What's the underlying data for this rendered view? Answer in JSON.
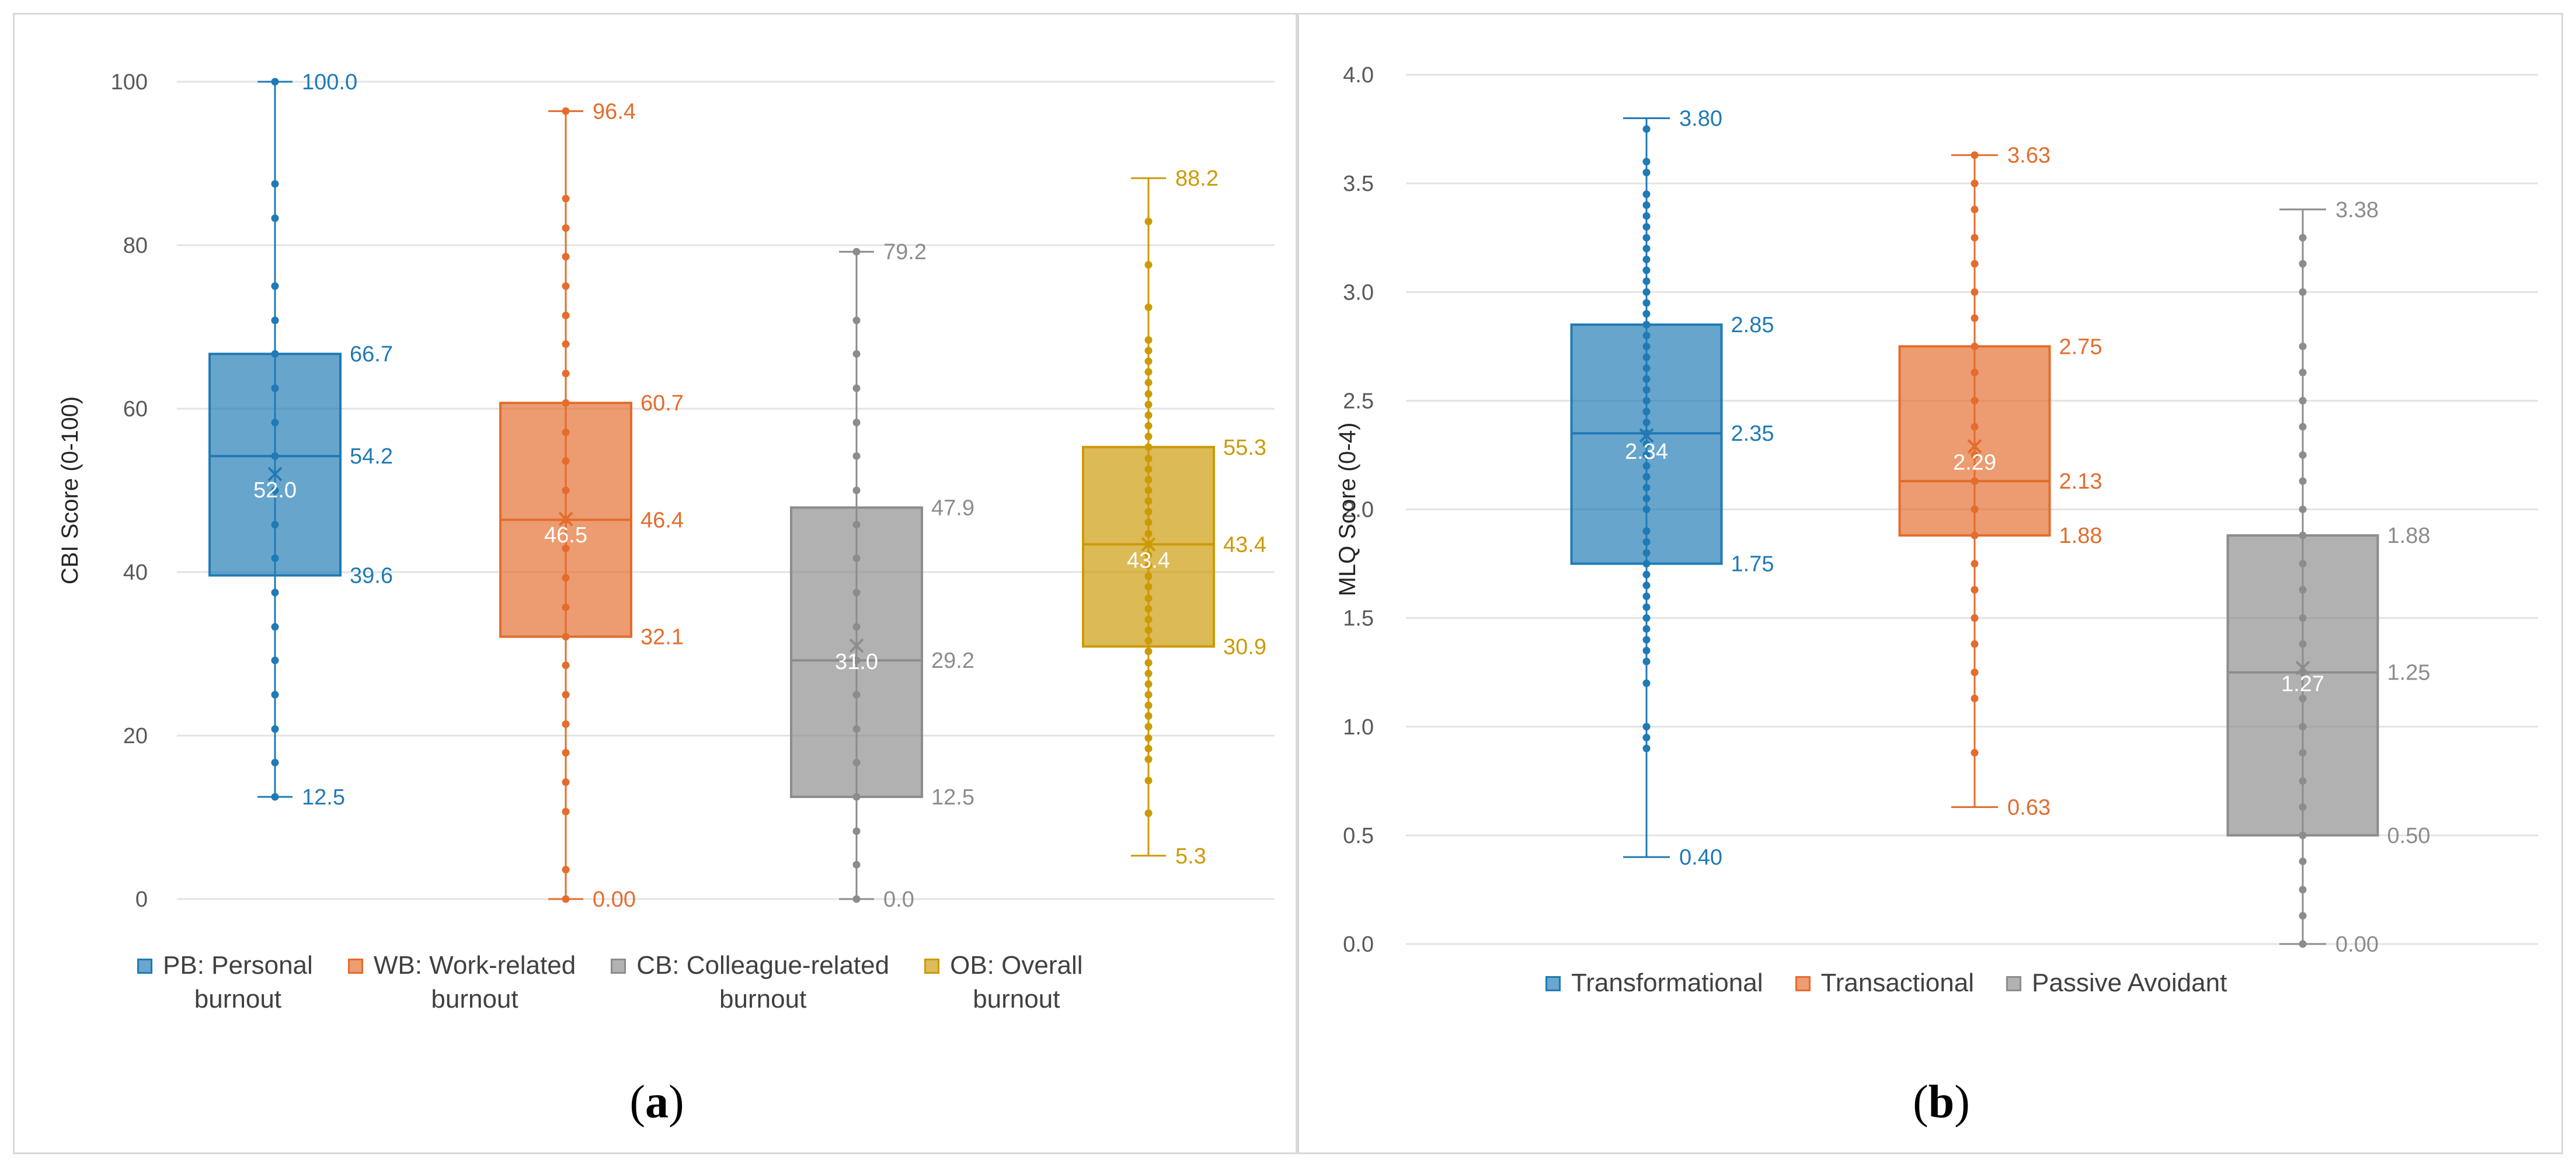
{
  "chart_data": [
    {
      "panel_label": "(a)",
      "type": "box",
      "ylabel": "CBI Score (0-100)",
      "ylim": [
        0,
        100
      ],
      "yticks": [
        "0",
        "20",
        "40",
        "60",
        "80",
        "100"
      ],
      "grid": true,
      "legend_position": "bottom",
      "series": [
        {
          "name": "PB: Personal burnout",
          "legend_lines": [
            "PB: Personal",
            "burnout"
          ],
          "color": "#1f7ab5",
          "min": 12.5,
          "q1": 39.6,
          "median": 54.2,
          "q3": 66.7,
          "max": 100.0,
          "mean": 52.0,
          "labels": {
            "min": "12.5",
            "q1": "39.6",
            "median": "54.2",
            "q3": "66.7",
            "max": "100.0",
            "mean": "52.0"
          },
          "points": [
            12.5,
            16.7,
            20.8,
            25.0,
            29.2,
            33.3,
            37.5,
            41.7,
            45.8,
            50.0,
            54.2,
            58.3,
            62.5,
            66.7,
            70.8,
            75.0,
            83.3,
            87.5,
            100.0
          ]
        },
        {
          "name": "WB: Work-related burnout",
          "legend_lines": [
            "WB: Work-related",
            "burnout"
          ],
          "color": "#e46c2c",
          "min": 0.0,
          "q1": 32.1,
          "median": 46.4,
          "q3": 60.7,
          "max": 96.4,
          "mean": 46.5,
          "labels": {
            "min": "0.00",
            "q1": "32.1",
            "median": "46.4",
            "q3": "60.7",
            "max": "96.4",
            "mean": "46.5"
          },
          "points": [
            0.0,
            3.6,
            10.7,
            14.3,
            17.9,
            21.4,
            25.0,
            28.6,
            32.1,
            35.7,
            39.3,
            42.9,
            46.4,
            50.0,
            53.6,
            57.1,
            60.7,
            64.3,
            67.9,
            71.4,
            75.0,
            78.6,
            82.1,
            85.7,
            96.4
          ]
        },
        {
          "name": "CB: Colleague-related burnout",
          "legend_lines": [
            "CB: Colleague-related",
            "burnout"
          ],
          "color": "#8c8c8c",
          "min": 0.0,
          "q1": 12.5,
          "median": 29.2,
          "q3": 47.9,
          "max": 79.2,
          "mean": 31.0,
          "labels": {
            "min": "0.0",
            "q1": "12.5",
            "median": "29.2",
            "q3": "47.9",
            "max": "79.2",
            "mean": "31.0"
          },
          "points": [
            0.0,
            4.2,
            8.3,
            12.5,
            16.7,
            20.8,
            25.0,
            29.2,
            33.3,
            37.5,
            41.7,
            45.8,
            50.0,
            54.2,
            58.3,
            62.5,
            66.7,
            70.8,
            79.2
          ]
        },
        {
          "name": "OB: Overall burnout",
          "legend_lines": [
            "OB: Overall",
            "burnout"
          ],
          "color": "#cc9a06",
          "min": 5.3,
          "q1": 30.9,
          "median": 43.4,
          "q3": 55.3,
          "max": 88.2,
          "mean": 43.4,
          "labels": {
            "min": "5.3",
            "q1": "30.9",
            "median": "43.4",
            "q3": "55.3",
            "max": "88.2",
            "mean": "43.4"
          },
          "points": [
            10.5,
            14.5,
            17.1,
            18.4,
            19.7,
            21.1,
            22.4,
            23.7,
            25.0,
            26.3,
            27.6,
            28.9,
            30.3,
            31.6,
            32.9,
            34.2,
            35.5,
            36.8,
            38.2,
            39.5,
            40.8,
            42.1,
            43.4,
            44.7,
            46.1,
            47.4,
            48.7,
            50.0,
            51.3,
            52.6,
            53.9,
            55.3,
            56.6,
            57.9,
            59.2,
            60.5,
            61.8,
            63.2,
            64.5,
            65.8,
            67.1,
            68.4,
            72.4,
            77.6,
            82.9
          ]
        }
      ]
    },
    {
      "panel_label": "(b)",
      "type": "box",
      "ylabel": "MLQ Score (0-4)",
      "ylim": [
        0,
        4
      ],
      "yticks": [
        "0.0",
        "0.5",
        "1.0",
        "1.5",
        "2.0",
        "2.5",
        "3.0",
        "3.5",
        "4.0"
      ],
      "grid": true,
      "legend_position": "bottom",
      "series": [
        {
          "name": "Transformational",
          "legend_lines": [
            "Transformational"
          ],
          "color": "#1f7ab5",
          "min": 0.4,
          "q1": 1.75,
          "median": 2.35,
          "q3": 2.85,
          "max": 3.8,
          "mean": 2.34,
          "labels": {
            "min": "0.40",
            "q1": "1.75",
            "median": "2.35",
            "q3": "2.85",
            "max": "3.80",
            "mean": "2.34"
          },
          "points": [
            0.9,
            0.95,
            1.0,
            1.2,
            1.3,
            1.35,
            1.4,
            1.45,
            1.5,
            1.55,
            1.6,
            1.65,
            1.7,
            1.75,
            1.8,
            1.85,
            1.9,
            2.0,
            2.05,
            2.1,
            2.15,
            2.2,
            2.25,
            2.3,
            2.35,
            2.4,
            2.45,
            2.5,
            2.55,
            2.6,
            2.65,
            2.7,
            2.75,
            2.8,
            2.85,
            2.9,
            2.95,
            3.0,
            3.05,
            3.1,
            3.15,
            3.2,
            3.25,
            3.3,
            3.35,
            3.4,
            3.45,
            3.55,
            3.6,
            3.75
          ]
        },
        {
          "name": "Transactional",
          "legend_lines": [
            "Transactional"
          ],
          "color": "#e46c2c",
          "min": 0.63,
          "q1": 1.88,
          "median": 2.13,
          "q3": 2.75,
          "max": 3.63,
          "mean": 2.29,
          "labels": {
            "min": "0.63",
            "q1": "1.88",
            "median": "2.13",
            "q3": "2.75",
            "max": "3.63",
            "mean": "2.29"
          },
          "points": [
            0.88,
            1.13,
            1.25,
            1.38,
            1.5,
            1.63,
            1.75,
            1.88,
            2.0,
            2.13,
            2.25,
            2.38,
            2.5,
            2.63,
            2.75,
            2.88,
            3.0,
            3.13,
            3.25,
            3.38,
            3.5,
            3.63
          ]
        },
        {
          "name": "Passive Avoidant",
          "legend_lines": [
            "Passive Avoidant"
          ],
          "color": "#8c8c8c",
          "min": 0.0,
          "q1": 0.5,
          "median": 1.25,
          "q3": 1.88,
          "max": 3.38,
          "mean": 1.27,
          "labels": {
            "min": "0.00",
            "q1": "0.50",
            "median": "1.25",
            "q3": "1.88",
            "max": "3.38",
            "mean": "1.27"
          },
          "points": [
            0.0,
            0.13,
            0.25,
            0.38,
            0.5,
            0.63,
            0.75,
            0.88,
            1.0,
            1.13,
            1.25,
            1.38,
            1.5,
            1.63,
            1.75,
            1.88,
            2.0,
            2.13,
            2.25,
            2.38,
            2.5,
            2.63,
            2.75,
            3.0,
            3.13,
            3.25
          ]
        }
      ]
    }
  ]
}
